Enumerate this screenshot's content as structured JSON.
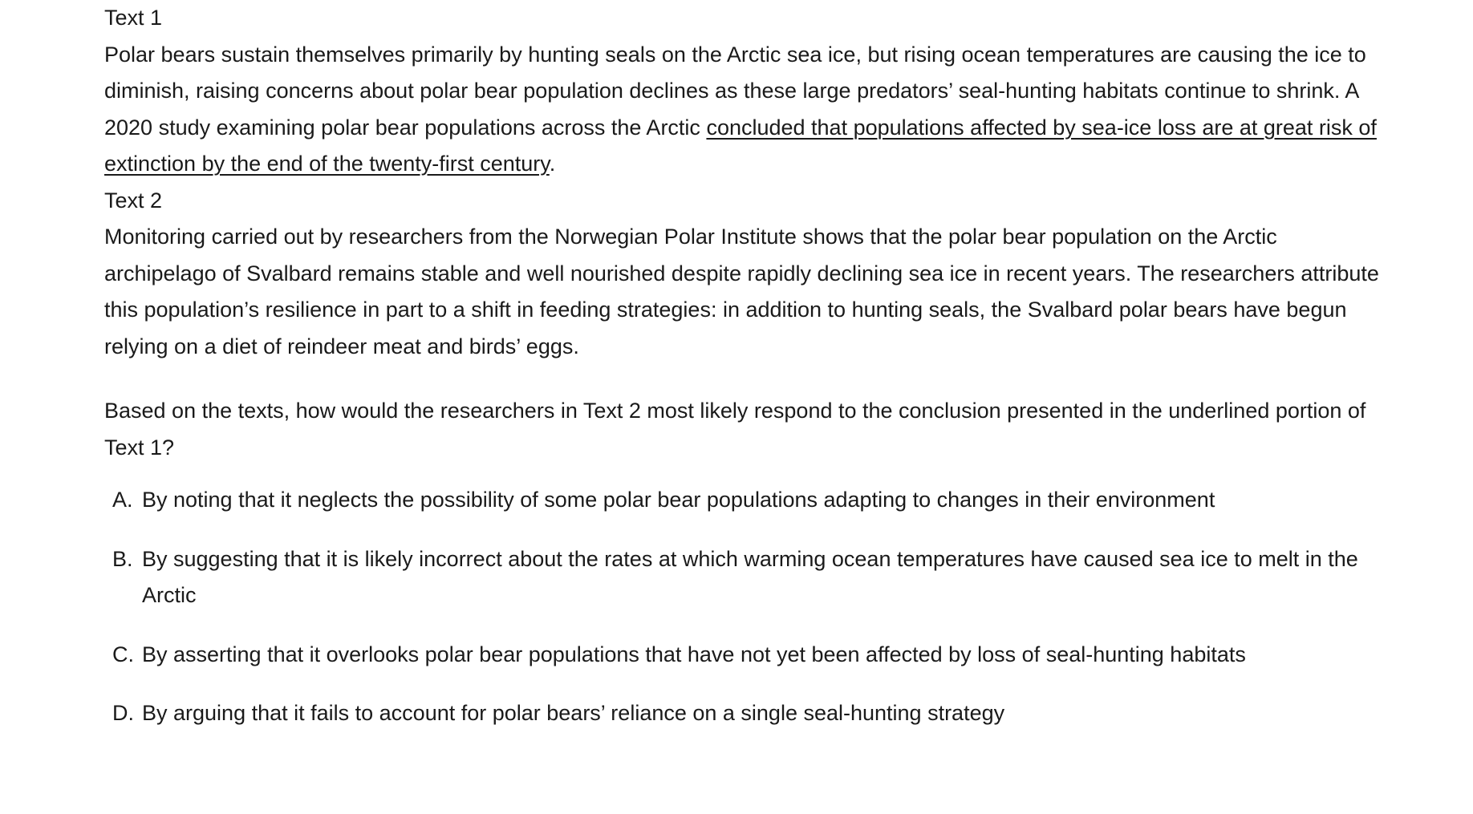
{
  "text1": {
    "heading": "Text 1",
    "body_before": "Polar bears sustain themselves primarily by hunting seals on the Arctic sea ice, but rising ocean temperatures are causing the ice to diminish, raising concerns about polar bear population declines as these large predators’ seal-hunting habitats continue to shrink. A 2020 study examining polar bear populations across the Arctic ",
    "body_underlined": "concluded that populations affected by sea-ice loss are at great risk of extinction by the end of the twenty-first century",
    "body_after": "."
  },
  "text2": {
    "heading": "Text 2",
    "body": "Monitoring carried out by researchers from the Norwegian Polar Institute shows that the polar bear population on the Arctic archipelago of Svalbard remains stable and well nourished despite rapidly declining sea ice in recent years. The researchers attribute this population’s resilience in part to a shift in feeding strategies: in addition to hunting seals, the Svalbard polar bears have begun relying on a diet of reindeer meat and birds’ eggs."
  },
  "question": "Based on the texts, how would the researchers in Text 2 most likely respond to the conclusion presented in the underlined portion of Text 1?",
  "choices": [
    {
      "letter": "A.",
      "text": "By noting that it neglects the possibility of some polar bear populations adapting to changes in their environment"
    },
    {
      "letter": "B.",
      "text": "By suggesting that it is likely incorrect about the rates at which warming ocean temperatures have caused sea ice to melt in the Arctic"
    },
    {
      "letter": "C.",
      "text": "By asserting that it overlooks polar bear populations that have not yet been affected by loss of seal-hunting habitats"
    },
    {
      "letter": "D.",
      "text": "By arguing that it fails to account for polar bears’ reliance on a single seal-hunting strategy"
    }
  ]
}
